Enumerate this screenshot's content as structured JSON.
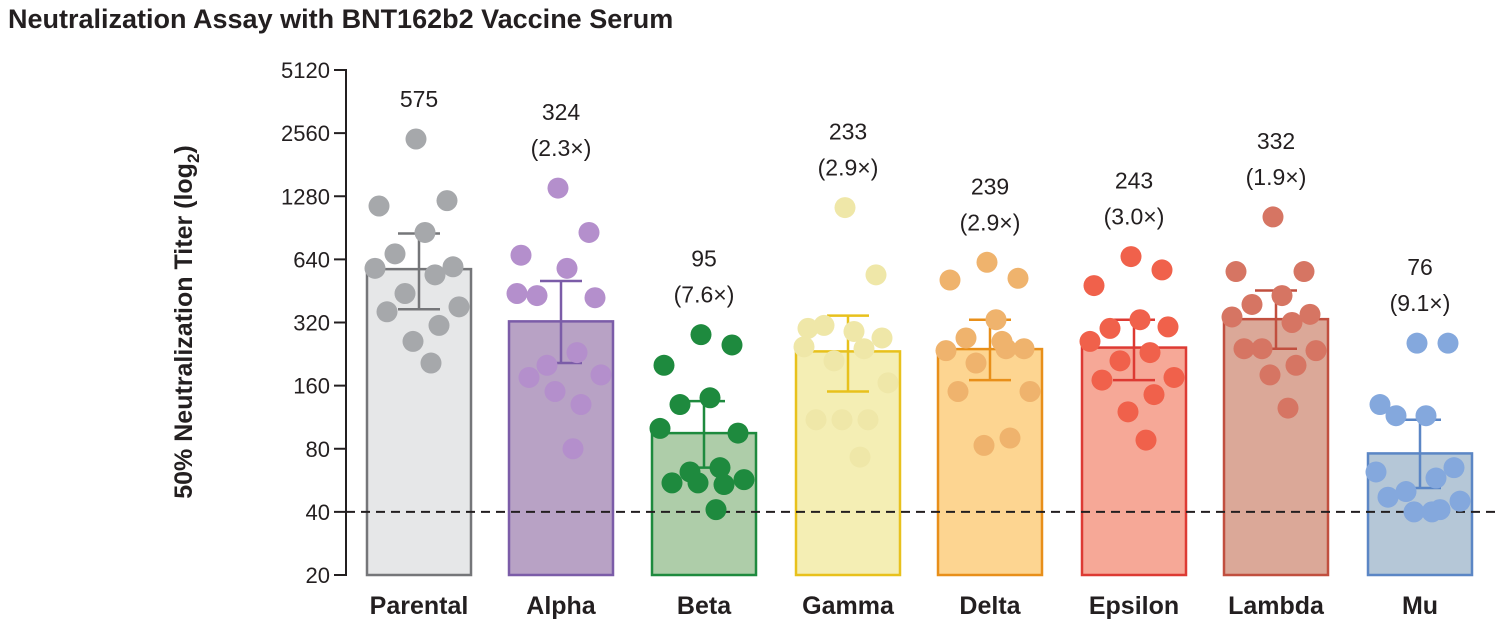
{
  "chart_data": {
    "type": "bar",
    "title": "Neutralization Assay with BNT162b2 Vaccine Serum",
    "ylabel": "50% Neutralization Titer (log",
    "ylabel_sub": "2",
    "ylabel_close": ")",
    "yscale": "log2",
    "ylim": [
      20,
      5120
    ],
    "yticks": [
      20,
      40,
      80,
      160,
      320,
      640,
      1280,
      2560,
      5120
    ],
    "ytick_labels": [
      "20",
      "40",
      "80",
      "160",
      "320",
      "640",
      "1280",
      "2560",
      "5120"
    ],
    "reference_line": 40,
    "categories": [
      "Parental",
      "Alpha",
      "Beta",
      "Gamma",
      "Delta",
      "Epsilon",
      "Lambda",
      "Mu"
    ],
    "values": [
      575,
      324,
      95,
      233,
      239,
      243,
      332,
      76
    ],
    "value_labels": [
      "575",
      "324",
      "95",
      "233",
      "239",
      "243",
      "332",
      "76"
    ],
    "fold_labels": [
      "",
      "(2.3×)",
      "(7.6×)",
      "(2.9×)",
      "(2.9×)",
      "(3.0×)",
      "(1.9×)",
      "(9.1×)"
    ],
    "error_bars": [
      [
        370,
        850
      ],
      [
        205,
        505
      ],
      [
        65,
        135
      ],
      [
        150,
        345
      ],
      [
        170,
        330
      ],
      [
        170,
        330
      ],
      [
        240,
        455
      ],
      [
        52,
        110
      ]
    ],
    "points": [
      [
        2400,
        1220,
        1150,
        860,
        680,
        590,
        580,
        540,
        440,
        380,
        360,
        310,
        260,
        205
      ],
      [
        1400,
        860,
        670,
        580,
        430,
        420,
        440,
        230,
        200,
        180,
        175,
        130,
        150,
        80
      ],
      [
        280,
        250,
        200,
        140,
        130,
        95,
        100,
        65,
        62,
        57,
        55,
        54,
        55,
        41
      ],
      [
        1130,
        540,
        300,
        290,
        310,
        270,
        245,
        240,
        210,
        165,
        110,
        110,
        110,
        73
      ],
      [
        620,
        520,
        510,
        330,
        270,
        240,
        235,
        240,
        205,
        150,
        150,
        90,
        83,
        260
      ],
      [
        660,
        570,
        480,
        330,
        300,
        305,
        260,
        230,
        210,
        175,
        170,
        145,
        120,
        88
      ],
      [
        1020,
        560,
        560,
        430,
        390,
        350,
        340,
        320,
        240,
        235,
        240,
        200,
        180,
        125
      ],
      [
        255,
        255,
        130,
        115,
        115,
        65,
        62,
        58,
        50,
        45,
        47,
        41,
        40,
        40
      ]
    ],
    "colors": {
      "stroke": [
        "#757679",
        "#7b5ca8",
        "#1e8a3e",
        "#e8c11c",
        "#e88f1a",
        "#dd3a33",
        "#c14f3f",
        "#5b86c5"
      ],
      "fill": [
        "#e6e7e8",
        "#b8a2c5",
        "#aecda9",
        "#f4eeb4",
        "#fdd591",
        "#f6a897",
        "#dba898",
        "#b5c7d7"
      ],
      "dot": [
        "#a6a8ab",
        "#b48fcc",
        "#1e8a3e",
        "#efe7a8",
        "#efb36d",
        "#f0614b",
        "#d67563",
        "#84a8dd"
      ]
    },
    "grid": false,
    "legend": "none"
  }
}
